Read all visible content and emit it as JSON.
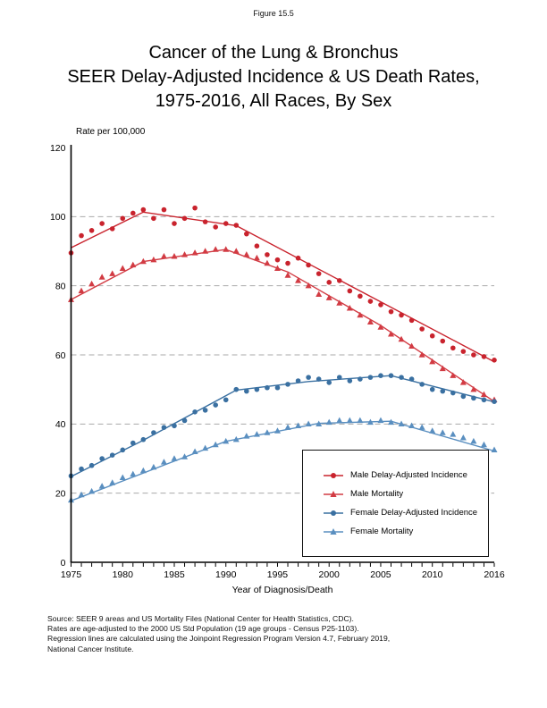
{
  "figure_label": "Figure 15.5",
  "title_lines": [
    "Cancer of the Lung & Bronchus",
    "SEER Delay-Adjusted Incidence & US Death Rates,",
    "1975-2016, All Races, By Sex"
  ],
  "footer_lines": [
    "Source: SEER 9 areas and US Mortality Files (National Center for Health Statistics, CDC).",
    "Rates are age-adjusted to the 2000 US Std Population (19 age groups - Census P25-1103).",
    "Regression lines are calculated using the Joinpoint Regression Program Version 4.7, February 2019,",
    "National Cancer Institute."
  ],
  "chart_data": {
    "type": "line",
    "title": "Cancer of the Lung & Bronchus SEER Delay-Adjusted Incidence & US Death Rates, 1975-2016, All Races, By Sex",
    "xlabel": "Year of Diagnosis/Death",
    "ylabel": "Rate per 100,000",
    "xlim": [
      1975,
      2016
    ],
    "ylim": [
      0,
      120
    ],
    "x_ticks": [
      1975,
      1980,
      1985,
      1990,
      1995,
      2000,
      2005,
      2010,
      2016
    ],
    "y_ticks": [
      0,
      20,
      40,
      60,
      80,
      100,
      120
    ],
    "grid": "horizontal dashed at 20,40,60,80,100",
    "legend_position": "inside lower-right",
    "years": [
      1975,
      1976,
      1977,
      1978,
      1979,
      1980,
      1981,
      1982,
      1983,
      1984,
      1985,
      1986,
      1987,
      1988,
      1989,
      1990,
      1991,
      1992,
      1993,
      1994,
      1995,
      1996,
      1997,
      1998,
      1999,
      2000,
      2001,
      2002,
      2003,
      2004,
      2005,
      2006,
      2007,
      2008,
      2009,
      2010,
      2011,
      2012,
      2013,
      2014,
      2015,
      2016
    ],
    "series": [
      {
        "name": "Male Delay-Adjusted Incidence",
        "marker": "circle",
        "color": "#c9232d",
        "values": [
          89.5,
          94.5,
          96,
          98,
          96.5,
          99.5,
          101,
          102,
          99.5,
          102,
          98,
          99.5,
          102.5,
          98.5,
          97,
          98,
          97.5,
          95,
          91.5,
          89,
          87.5,
          86.5,
          88,
          86,
          83.5,
          81,
          81.5,
          78.5,
          77,
          75.5,
          74.5,
          72.5,
          71.5,
          70,
          67.5,
          65.5,
          64,
          62,
          61,
          60,
          59.5,
          58.5
        ],
        "trend": [
          [
            1975,
            91
          ],
          [
            1982,
            101.3
          ],
          [
            1991,
            97.4
          ],
          [
            2016,
            58
          ]
        ]
      },
      {
        "name": "Male Mortality",
        "marker": "triangle",
        "color": "#d23b43",
        "values": [
          76,
          78.5,
          80.5,
          82.5,
          83.5,
          85,
          86,
          87,
          87.5,
          88.5,
          88.5,
          89,
          89.5,
          90,
          90.5,
          90.5,
          90,
          89,
          88,
          86.5,
          85,
          83,
          81.5,
          80,
          77.5,
          76.5,
          75,
          73.5,
          71.5,
          69.5,
          68,
          66,
          64.5,
          62.5,
          60,
          58,
          56,
          54,
          52,
          50,
          48.5,
          47
        ],
        "trend": [
          [
            1975,
            76
          ],
          [
            1982,
            87
          ],
          [
            1990,
            90.5
          ],
          [
            1996,
            84
          ],
          [
            2005,
            68.5
          ],
          [
            2016,
            46.5
          ]
        ]
      },
      {
        "name": "Female Delay-Adjusted Incidence",
        "marker": "circle",
        "color": "#3a70a1",
        "values": [
          25,
          27,
          28,
          30,
          31,
          32.5,
          34.5,
          35.5,
          37.5,
          39,
          39.5,
          41,
          43.5,
          44,
          45.5,
          47,
          50,
          49.5,
          50,
          50.5,
          50.5,
          51.5,
          52.5,
          53.5,
          53,
          52,
          53.5,
          52.5,
          53,
          53.5,
          54,
          54,
          53.5,
          53,
          51.5,
          50,
          49.5,
          49,
          48,
          47.5,
          47,
          46.5
        ],
        "trend": [
          [
            1975,
            24.8
          ],
          [
            1982,
            35.3
          ],
          [
            1991,
            49.8
          ],
          [
            1998,
            52.3
          ],
          [
            2006,
            54
          ],
          [
            2016,
            46.4
          ]
        ]
      },
      {
        "name": "Female Mortality",
        "marker": "triangle",
        "color": "#5a8fc0",
        "values": [
          18,
          19.5,
          20.5,
          22,
          23,
          24.5,
          25.5,
          26.5,
          27.5,
          29,
          30,
          30.5,
          32,
          33,
          34,
          35,
          35.5,
          36.5,
          37,
          37.5,
          38,
          39,
          39.5,
          40,
          40,
          40.5,
          41,
          41,
          41,
          40.5,
          41,
          40.5,
          40,
          39.5,
          39,
          38,
          37.5,
          37,
          36,
          35,
          34,
          32.5
        ],
        "trend": [
          [
            1975,
            17.8
          ],
          [
            1990,
            35
          ],
          [
            1999,
            40.2
          ],
          [
            2006,
            40.8
          ],
          [
            2016,
            32.2
          ]
        ]
      }
    ],
    "colors": {
      "male": "#c9232d",
      "female": "#3a70a1",
      "grid": "#a9a9a9",
      "axis": "#000000"
    }
  }
}
